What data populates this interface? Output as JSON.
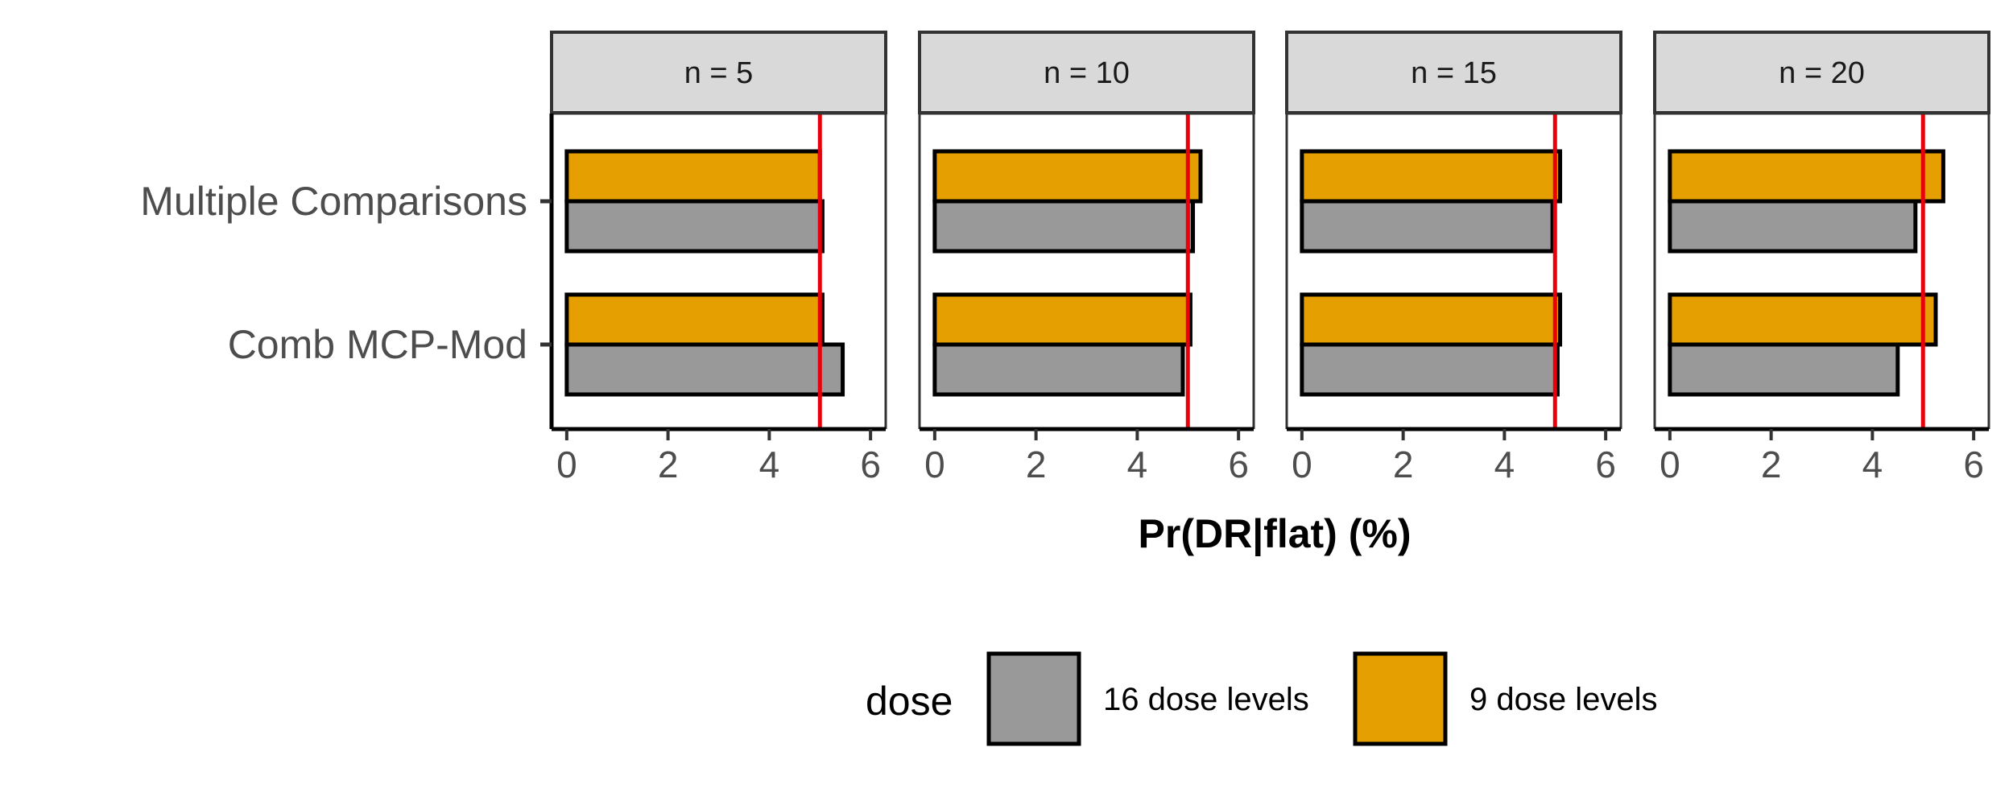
{
  "chart_data": {
    "type": "bar",
    "orientation": "horizontal",
    "xlabel": "Pr(DR|flat) (%)",
    "xlim": [
      -0.3,
      6.3
    ],
    "xticks": [
      0,
      2,
      4,
      6
    ],
    "reference_line": {
      "x": 5,
      "color": "#e8000b"
    },
    "categories": [
      "Multiple Comparisons",
      "Comb MCP-Mod"
    ],
    "legend": {
      "title": "dose",
      "position": "bottom",
      "entries": [
        {
          "label": "16 dose levels",
          "color": "#999999"
        },
        {
          "label": "9 dose levels",
          "color": "#e69f00"
        }
      ]
    },
    "panels": [
      {
        "label": "n = 5",
        "series": [
          {
            "name": "9 dose levels",
            "values": [
              5.0,
              5.05
            ]
          },
          {
            "name": "16 dose levels",
            "values": [
              5.05,
              5.45
            ]
          }
        ]
      },
      {
        "label": "n = 10",
        "series": [
          {
            "name": "9 dose levels",
            "values": [
              5.25,
              5.05
            ]
          },
          {
            "name": "16 dose levels",
            "values": [
              5.1,
              4.9
            ]
          }
        ]
      },
      {
        "label": "n = 15",
        "series": [
          {
            "name": "9 dose levels",
            "values": [
              5.1,
              5.1
            ]
          },
          {
            "name": "16 dose levels",
            "values": [
              4.95,
              5.05
            ]
          }
        ]
      },
      {
        "label": "n = 20",
        "series": [
          {
            "name": "9 dose levels",
            "values": [
              5.4,
              5.25
            ]
          },
          {
            "name": "16 dose levels",
            "values": [
              4.85,
              4.5
            ]
          }
        ]
      }
    ]
  }
}
